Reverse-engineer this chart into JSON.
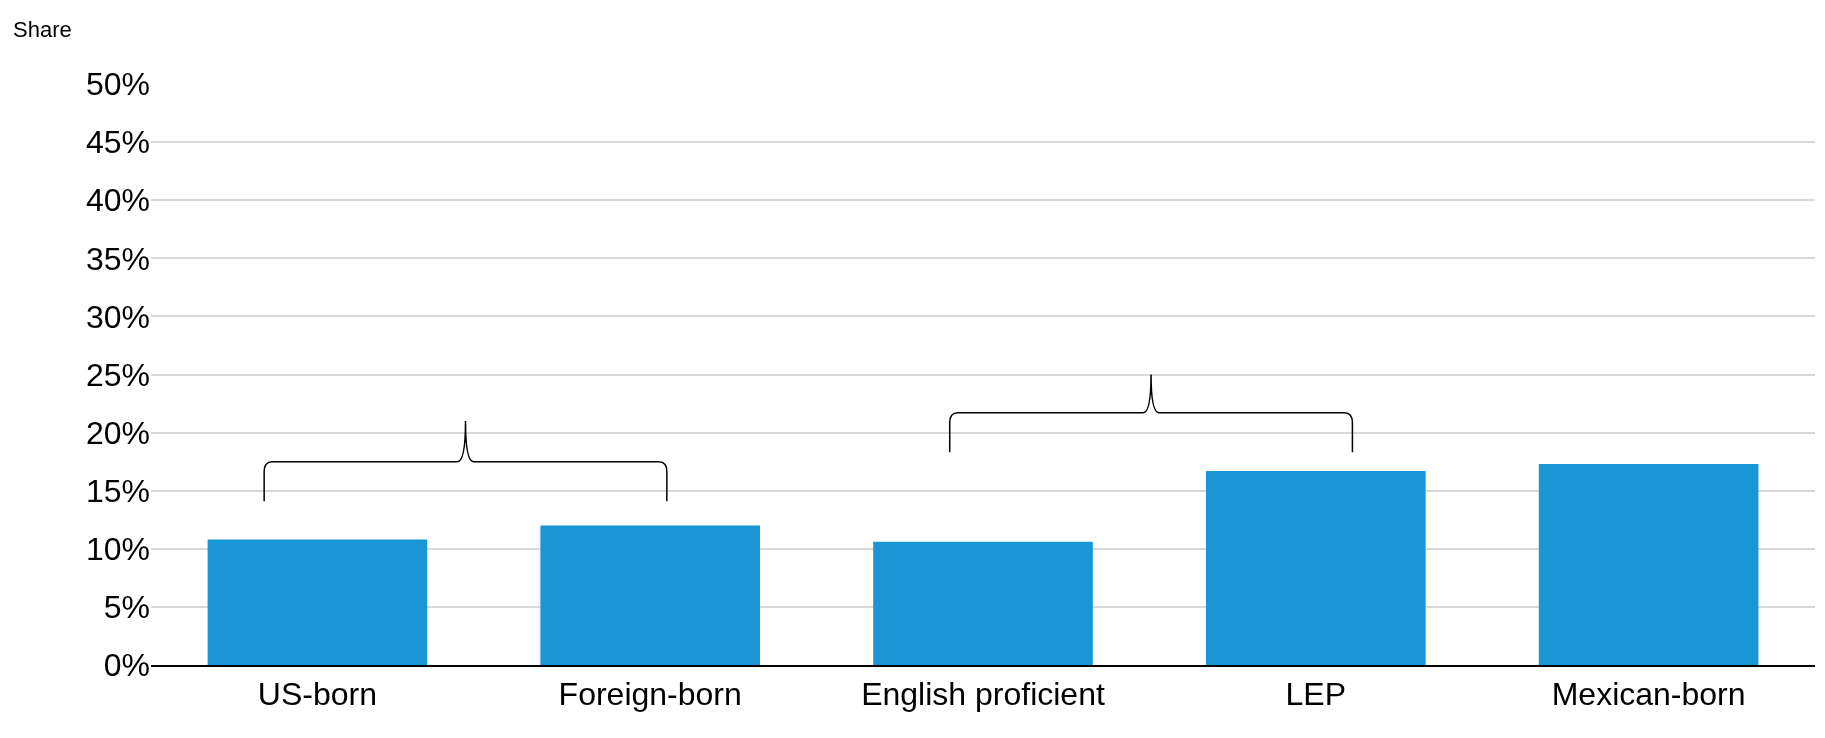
{
  "chart_data": {
    "type": "bar",
    "ylabel": "Share",
    "categories": [
      "US-born",
      "Foreign-born",
      "English proficient",
      "LEP",
      "Mexican-born"
    ],
    "values": [
      10.8,
      12.0,
      10.6,
      16.7,
      17.3
    ],
    "color": "#1a96d4",
    "ylim": [
      0,
      50
    ],
    "yticks": [
      {
        "value": 0,
        "label": "0%"
      },
      {
        "value": 5,
        "label": "5%"
      },
      {
        "value": 10,
        "label": "10%"
      },
      {
        "value": 15,
        "label": "15%"
      },
      {
        "value": 20,
        "label": "20%"
      },
      {
        "value": 25,
        "label": "25%"
      },
      {
        "value": 30,
        "label": "30%"
      },
      {
        "value": 35,
        "label": "35%"
      },
      {
        "value": 40,
        "label": "40%"
      },
      {
        "value": 45,
        "label": "45%"
      },
      {
        "value": 50,
        "label": "50%"
      }
    ],
    "grid": "y"
  }
}
